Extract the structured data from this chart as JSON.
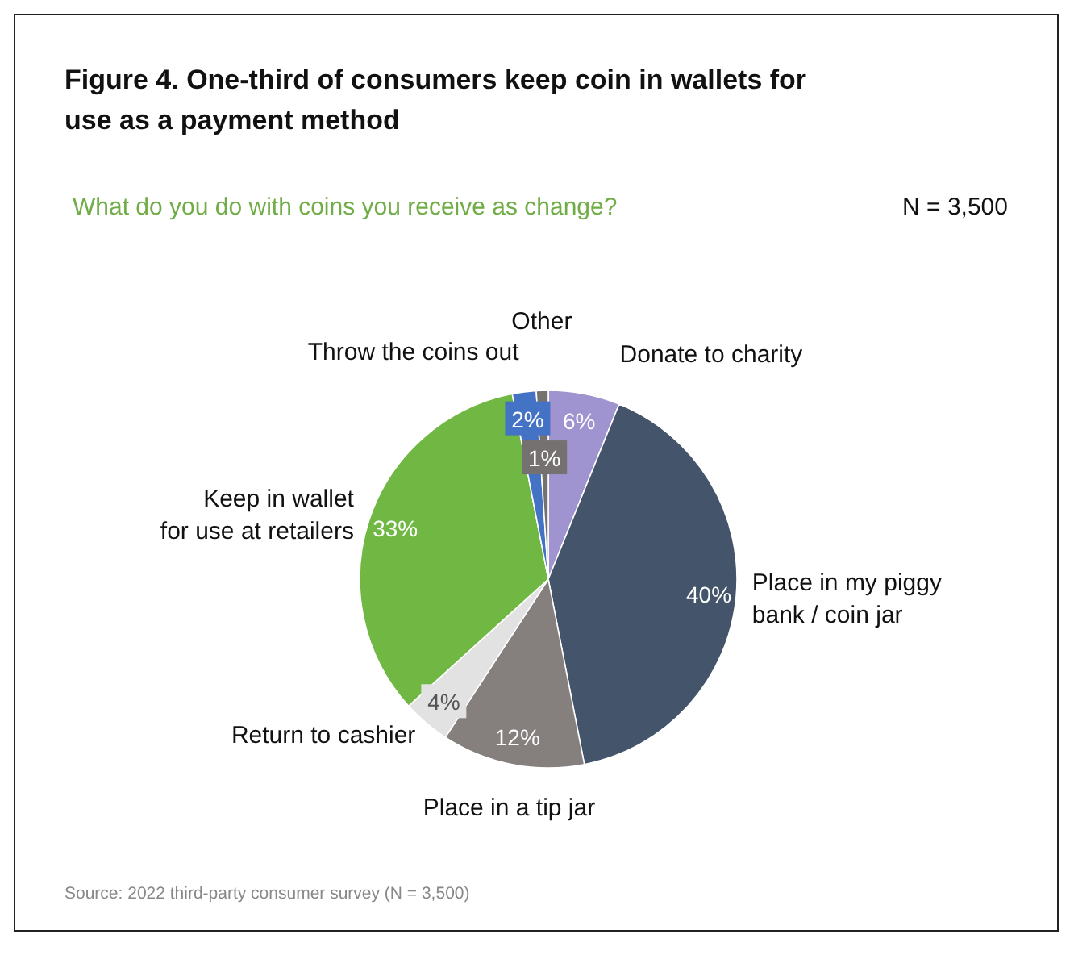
{
  "chart_data": {
    "type": "pie",
    "title": "Figure 4. One-third of consumers keep coin in wallets for use as a payment method",
    "subtitle": "What do you do with coins you receive as change?",
    "categories": [
      "Donate to charity",
      "Place in my piggy bank / coin jar",
      "Place in a tip jar",
      "Return to cashier",
      "Keep in wallet for use at retailers",
      "Throw the coins out",
      "Other"
    ],
    "values": [
      6,
      40,
      12,
      4,
      33,
      2,
      1
    ],
    "colors": [
      "#a094d0",
      "#44546a",
      "#857f7d",
      "#e2e2e2",
      "#70b843",
      "#4472c4",
      "#767171"
    ],
    "value_labels": [
      "6%",
      "40%",
      "12%",
      "4%",
      "33%",
      "2%",
      "1%"
    ],
    "annotations": [
      "N = 3,500",
      "Source: 2022 third-party consumer survey (N = 3,500)"
    ]
  }
}
